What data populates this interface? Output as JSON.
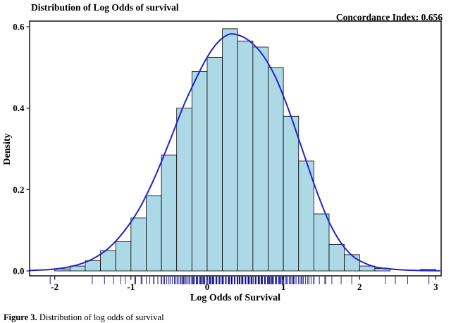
{
  "title": "Distribution of Log Odds of survival",
  "annotation": "Concordance Index: 0.656",
  "x_axis": {
    "label": "Log Odds of Survival",
    "tick_values": [
      -2,
      -1,
      0,
      1,
      2,
      3
    ],
    "tick_labels": [
      "-2",
      "-1",
      "0",
      "1",
      "2",
      "3"
    ]
  },
  "y_axis": {
    "label": "Density",
    "tick_values": [
      0,
      0.2,
      0.4,
      0.6
    ],
    "tick_labels": [
      "0.0",
      "0.2",
      "0.4",
      "0.6"
    ]
  },
  "caption": {
    "label": "Figure 3.",
    "text": " Distribution of log odds of survival"
  },
  "colors": {
    "bar_fill": "#ADD8E6",
    "bar_stroke": "#000000",
    "density_line": "#2222CC",
    "rug": "#00008B",
    "panel_border": "#000000"
  },
  "chart_data": {
    "type": "histogram",
    "title": "Distribution of Log Odds of survival",
    "xlabel": "Log Odds of Survival",
    "ylabel": "Density",
    "annotation": "Concordance Index: 0.656",
    "grid": false,
    "legend": "none",
    "xlim": [
      -2.33,
      3.07
    ],
    "ylim": [
      0,
      0.62
    ],
    "bin_width": 0.2,
    "bin_starts": [
      -2.0,
      -1.8,
      -1.6,
      -1.4,
      -1.2,
      -1.0,
      -0.8,
      -0.6,
      -0.4,
      -0.2,
      0.0,
      0.2,
      0.4,
      0.6,
      0.8,
      1.0,
      1.2,
      1.4,
      1.6,
      1.8,
      2.0,
      2.2,
      2.4,
      2.6,
      2.8
    ],
    "densities": [
      0.005,
      0.012,
      0.025,
      0.05,
      0.072,
      0.13,
      0.185,
      0.285,
      0.4,
      0.49,
      0.525,
      0.595,
      0.565,
      0.55,
      0.5,
      0.38,
      0.27,
      0.14,
      0.065,
      0.04,
      0.012,
      0.006,
      0,
      0,
      0.004
    ],
    "density_curve": {
      "x": [
        -2.33,
        -2.1,
        -1.9,
        -1.7,
        -1.5,
        -1.3,
        -1.1,
        -0.9,
        -0.7,
        -0.5,
        -0.3,
        -0.1,
        0.0,
        0.1,
        0.2,
        0.3,
        0.4,
        0.5,
        0.6,
        0.7,
        0.8,
        0.9,
        1.0,
        1.1,
        1.2,
        1.3,
        1.4,
        1.5,
        1.6,
        1.7,
        1.8,
        1.9,
        2.0,
        2.2,
        2.4,
        2.6,
        2.8,
        3.05
      ],
      "y": [
        0.001,
        0.003,
        0.007,
        0.015,
        0.03,
        0.055,
        0.095,
        0.15,
        0.225,
        0.315,
        0.41,
        0.49,
        0.525,
        0.553,
        0.572,
        0.582,
        0.58,
        0.572,
        0.558,
        0.538,
        0.51,
        0.475,
        0.43,
        0.38,
        0.325,
        0.27,
        0.215,
        0.165,
        0.12,
        0.085,
        0.058,
        0.038,
        0.025,
        0.01,
        0.005,
        0.002,
        0.001,
        0.0005
      ]
    },
    "rug": {
      "present": true,
      "marks_per_density_unit": 32,
      "extra_points": [
        -2.06,
        2.34,
        2.47,
        2.63,
        2.91
      ]
    }
  }
}
